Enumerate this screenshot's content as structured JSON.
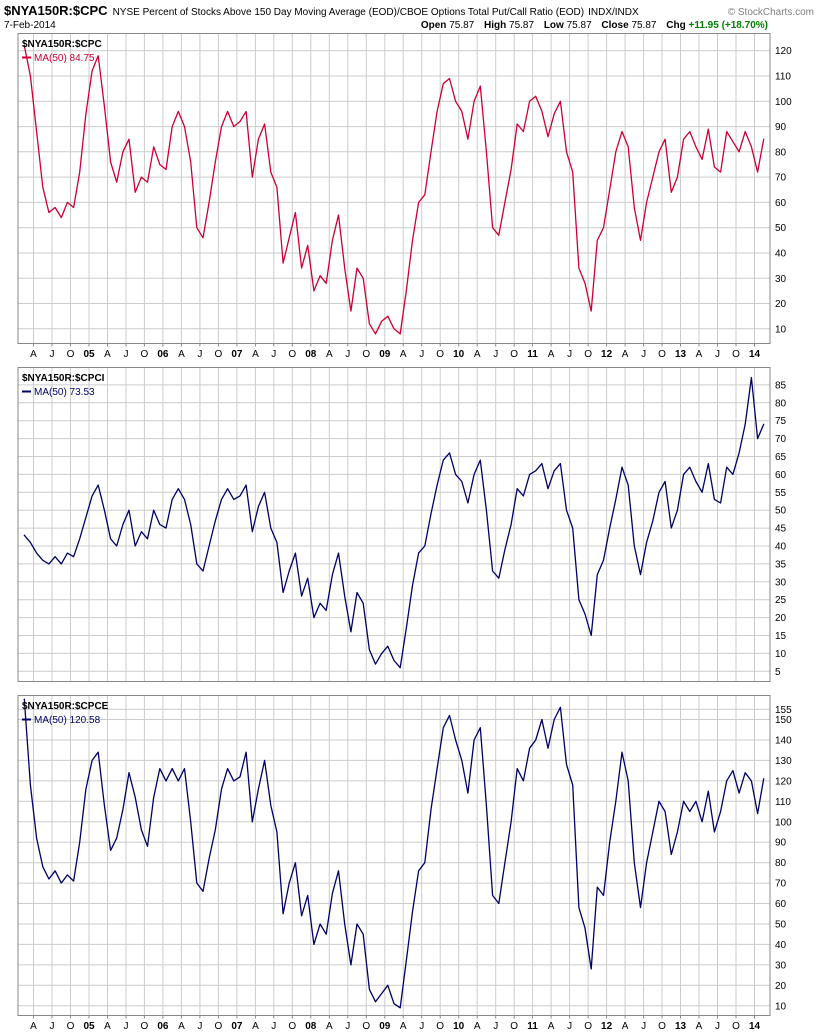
{
  "header": {
    "symbol": "$NYA150R:$CPC",
    "description": "NYSE Percent of Stocks Above 150 Day Moving Average (EOD)/CBOE Options Total Put/Call Ratio (EOD)",
    "index_type": "INDX/INDX",
    "credit": "© StockCharts.com",
    "date": "7-Feb-2014",
    "quote": {
      "open_label": "Open",
      "open_value": "75.87",
      "high_label": "High",
      "high_value": "75.87",
      "low_label": "Low",
      "low_value": "75.87",
      "close_label": "Close",
      "close_value": "75.87",
      "chg_label": "Chg",
      "chg_value": "+11.95 (+18.70%)"
    }
  },
  "colors": {
    "red": "#cc0033",
    "blue": "#000066",
    "grid": "#cccccc",
    "border": "#888888",
    "chg_green": "#008000",
    "text": "#000000"
  },
  "xaxis": {
    "labels": [
      "A",
      "J",
      "O",
      "05",
      "A",
      "J",
      "O",
      "06",
      "A",
      "J",
      "O",
      "07",
      "A",
      "J",
      "O",
      "08",
      "A",
      "J",
      "O",
      "09",
      "A",
      "J",
      "O",
      "10",
      "A",
      "J",
      "O",
      "11",
      "A",
      "J",
      "O",
      "12",
      "A",
      "J",
      "O",
      "13",
      "A",
      "J",
      "O",
      "14"
    ],
    "tick_start": 2004.25,
    "tick_step": 0.25,
    "xlim": [
      2004.04,
      2014.21
    ]
  },
  "chart_data": [
    {
      "type": "line",
      "name": "cpc",
      "title": "$NYA150R:$CPC",
      "legend": "MA(50) 84.75",
      "color": "#cc0033",
      "ylim": [
        4,
        127
      ],
      "yticks": [
        120,
        110,
        100,
        90,
        80,
        70,
        60,
        50,
        40,
        30,
        20,
        10
      ],
      "x0": 2004.125,
      "points_per_year": 12,
      "show_xlabels": true,
      "values": [
        122,
        110,
        88,
        66,
        56,
        58,
        54,
        60,
        58,
        72,
        95,
        112,
        118,
        98,
        76,
        68,
        80,
        85,
        64,
        70,
        68,
        82,
        75,
        73,
        90,
        96,
        90,
        76,
        50,
        46,
        60,
        76,
        90,
        96,
        90,
        92,
        96,
        70,
        85,
        91,
        72,
        66,
        36,
        46,
        56,
        34,
        43,
        25,
        31,
        28,
        45,
        55,
        34,
        17,
        34,
        30,
        12,
        8,
        13,
        15,
        10,
        8,
        25,
        45,
        60,
        63,
        80,
        96,
        107,
        109,
        100,
        96,
        85,
        100,
        106,
        80,
        50,
        47,
        60,
        73,
        91,
        88,
        100,
        102,
        96,
        86,
        95,
        100,
        80,
        72,
        34,
        28,
        17,
        45,
        50,
        65,
        80,
        88,
        82,
        58,
        45,
        60,
        70,
        80,
        85,
        64,
        70,
        85,
        88,
        82,
        77,
        89,
        74,
        72,
        88,
        84,
        80,
        88,
        82,
        72,
        85
      ]
    },
    {
      "type": "line",
      "name": "cpci",
      "title": "$NYA150R:$CPCI",
      "legend": "MA(50) 73.53",
      "color": "#000066",
      "ylim": [
        2,
        90
      ],
      "yticks": [
        85,
        80,
        75,
        70,
        65,
        60,
        55,
        50,
        45,
        40,
        35,
        30,
        25,
        20,
        15,
        10,
        5
      ],
      "x0": 2004.125,
      "points_per_year": 12,
      "show_xlabels": false,
      "values": [
        43,
        41,
        38,
        36,
        35,
        37,
        35,
        38,
        37,
        42,
        48,
        54,
        57,
        50,
        42,
        40,
        46,
        50,
        40,
        44,
        42,
        50,
        46,
        45,
        53,
        56,
        53,
        46,
        35,
        33,
        40,
        47,
        53,
        56,
        53,
        54,
        57,
        44,
        51,
        55,
        45,
        41,
        27,
        33,
        38,
        26,
        31,
        20,
        24,
        22,
        32,
        38,
        26,
        16,
        27,
        24,
        11,
        7,
        10,
        12,
        8,
        6,
        17,
        29,
        38,
        40,
        49,
        57,
        64,
        66,
        60,
        58,
        52,
        60,
        64,
        50,
        33,
        31,
        39,
        46,
        56,
        54,
        60,
        61,
        63,
        56,
        61,
        63,
        50,
        45,
        25,
        21,
        15,
        32,
        36,
        45,
        53,
        62,
        57,
        40,
        32,
        41,
        47,
        55,
        58,
        45,
        50,
        60,
        62,
        58,
        55,
        63,
        53,
        52,
        62,
        60,
        66,
        74,
        87,
        70,
        74
      ]
    },
    {
      "type": "line",
      "name": "cpce",
      "title": "$NYA150R:$CPCE",
      "legend": "MA(50) 120.58",
      "color": "#000066",
      "ylim": [
        5,
        162
      ],
      "yticks": [
        155,
        150,
        140,
        130,
        120,
        110,
        100,
        90,
        80,
        70,
        60,
        50,
        40,
        30,
        20,
        10
      ],
      "x0": 2004.125,
      "points_per_year": 12,
      "show_xlabels": true,
      "values": [
        160,
        118,
        92,
        78,
        72,
        76,
        70,
        74,
        71,
        90,
        116,
        130,
        134,
        108,
        86,
        92,
        106,
        124,
        112,
        96,
        88,
        112,
        126,
        120,
        126,
        120,
        126,
        100,
        70,
        66,
        82,
        96,
        116,
        126,
        120,
        122,
        134,
        100,
        116,
        130,
        108,
        95,
        55,
        70,
        80,
        54,
        64,
        40,
        50,
        45,
        65,
        76,
        50,
        30,
        50,
        45,
        18,
        12,
        16,
        20,
        11,
        9,
        32,
        56,
        76,
        80,
        106,
        126,
        146,
        152,
        140,
        130,
        114,
        140,
        146,
        108,
        64,
        60,
        80,
        100,
        126,
        120,
        136,
        140,
        150,
        136,
        150,
        156,
        128,
        118,
        58,
        48,
        28,
        68,
        64,
        90,
        110,
        134,
        120,
        80,
        58,
        80,
        95,
        110,
        105,
        84,
        95,
        110,
        105,
        110,
        100,
        115,
        95,
        105,
        120,
        125,
        114,
        124,
        120,
        104,
        121
      ]
    }
  ]
}
